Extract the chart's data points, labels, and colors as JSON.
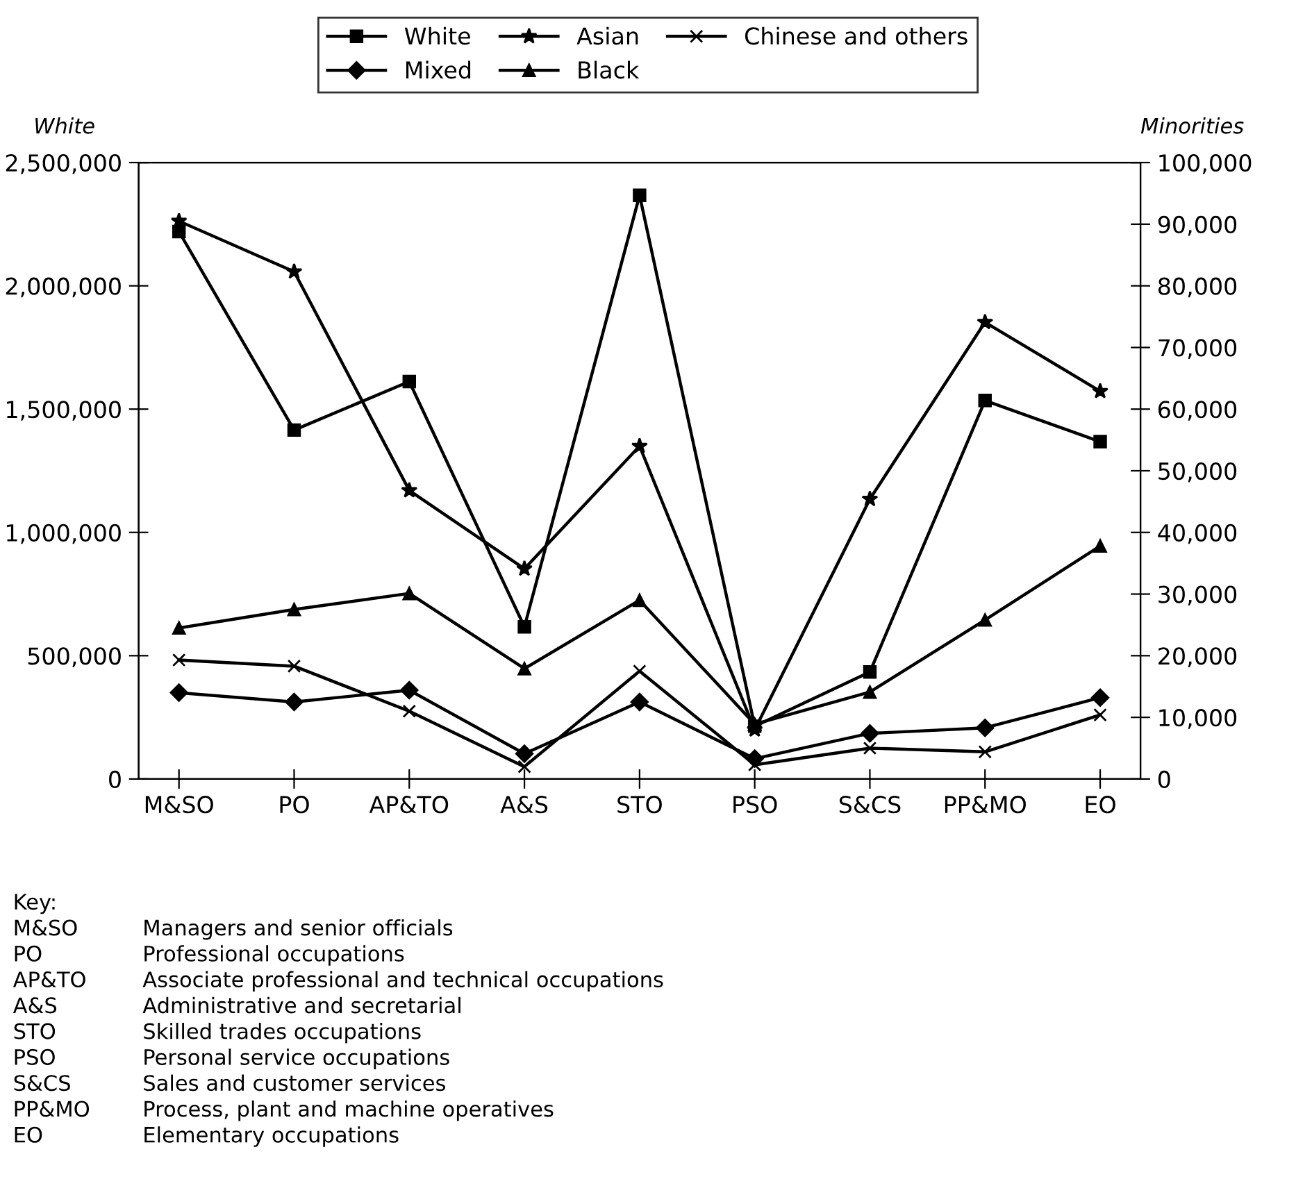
{
  "chart_data": {
    "type": "line",
    "ylabel": "White",
    "y2label": "Minorities",
    "categories": [
      "M&SO",
      "PO",
      "AP&TO",
      "A&S",
      "STO",
      "PSO",
      "S&CS",
      "PP&MO",
      "EO"
    ],
    "series": [
      {
        "name": "White",
        "color": "#000000",
        "marker": "square",
        "values": [
          2220000,
          1415000,
          1612000,
          617000,
          2367000,
          214000,
          434000,
          1535000,
          1368000
        ]
      },
      {
        "name": "Mixed",
        "color": "#000000",
        "marker": "diamond",
        "axis": "y2",
        "values": [
          14000,
          12500,
          14400,
          4100,
          12500,
          3300,
          7400,
          8300,
          13200
        ]
      },
      {
        "name": "Asian",
        "color": "#000000",
        "marker": "star",
        "axis": "y2",
        "values": [
          90500,
          82300,
          46800,
          34100,
          54000,
          8000,
          45400,
          74100,
          62900
        ]
      },
      {
        "name": "Black",
        "color": "#000000",
        "marker": "triangle",
        "axis": "y2",
        "values": [
          24500,
          27500,
          30100,
          17900,
          29000,
          8900,
          14100,
          25800,
          37800
        ]
      },
      {
        "name": "Chinese and others",
        "color": "#000000",
        "marker": "cross",
        "axis": "y2",
        "values": [
          19300,
          18300,
          11000,
          2000,
          17500,
          2300,
          5000,
          4400,
          10400
        ]
      }
    ],
    "ylim": [
      0,
      2500000
    ],
    "yticks": [
      0,
      {
        "value": 500000,
        "label": "500,000"
      },
      {
        "value": 1000000,
        "label": "1,000,000"
      },
      {
        "value": 1500000,
        "label": "1,500,000"
      },
      {
        "value": 2000000,
        "label": "2,000,000"
      },
      {
        "value": 2500000,
        "label": "2,500,000"
      }
    ],
    "y2lim": [
      0,
      100000
    ],
    "y2ticks": [
      0,
      {
        "value": 10000,
        "label": "10,000"
      },
      {
        "value": 20000,
        "label": "20,000"
      },
      {
        "value": 30000,
        "label": "30,000"
      },
      {
        "value": 40000,
        "label": "40,000"
      },
      {
        "value": 50000,
        "label": "50,000"
      },
      {
        "value": 60000,
        "label": "60,000"
      },
      {
        "value": 70000,
        "label": "70,000"
      },
      {
        "value": 80000,
        "label": "80,000"
      },
      {
        "value": 90000,
        "label": "90,000"
      },
      {
        "value": 100000,
        "label": "100,000"
      }
    ],
    "grid": false,
    "legend": "top",
    "line_style": "solid",
    "annotations": [
      "Key:",
      "M&SO",
      "Managers and senior officials",
      "PO",
      "Professional occupations",
      "AP&TO",
      "Associate professional and technical occupations",
      "A&S",
      "Administrative and secretarial",
      "STO",
      "Skilled trades occupations",
      "PSO",
      "Personal service occupations",
      "S&CS",
      "Sales and customer services",
      "PP&MO",
      "Process, plant and machine operatives",
      "EO",
      "Elementary occupations"
    ]
  }
}
